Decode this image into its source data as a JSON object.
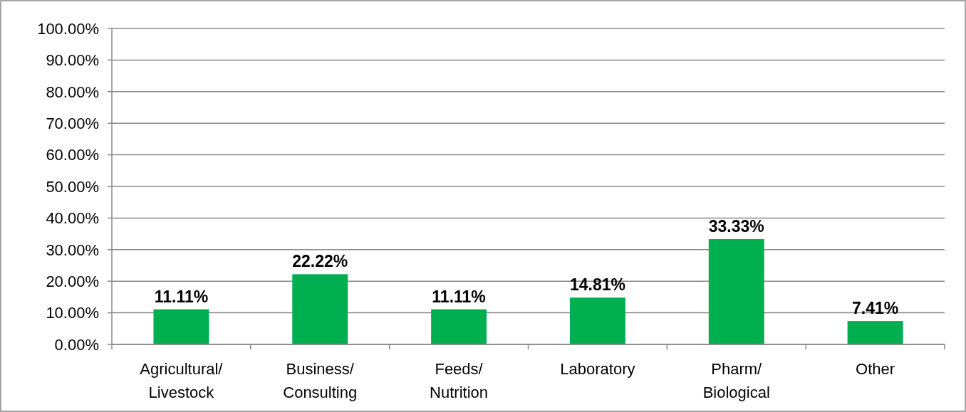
{
  "chart_data": {
    "type": "bar",
    "categories": [
      "Agricultural/ Livestock",
      "Business/ Consulting",
      "Feeds/ Nutrition",
      "Laboratory",
      "Pharm/ Biological",
      "Other"
    ],
    "values": [
      11.11,
      22.22,
      11.11,
      14.81,
      33.33,
      7.41
    ],
    "value_labels": [
      "11.11%",
      "22.22%",
      "11.11%",
      "14.81%",
      "33.33%",
      "7.41%"
    ],
    "color": "#00b050",
    "ylim": [
      0,
      100
    ],
    "yticks": [
      {
        "value": 0,
        "label": "0.00%"
      },
      {
        "value": 10,
        "label": "10.00%"
      },
      {
        "value": 20,
        "label": "20.00%"
      },
      {
        "value": 30,
        "label": "30.00%"
      },
      {
        "value": 40,
        "label": "40.00%"
      },
      {
        "value": 50,
        "label": "50.00%"
      },
      {
        "value": 60,
        "label": "60.00%"
      },
      {
        "value": 70,
        "label": "70.00%"
      },
      {
        "value": 80,
        "label": "80.00%"
      },
      {
        "value": 90,
        "label": "90.00%"
      },
      {
        "value": 100,
        "label": "100.00%"
      }
    ],
    "grid": "y"
  }
}
